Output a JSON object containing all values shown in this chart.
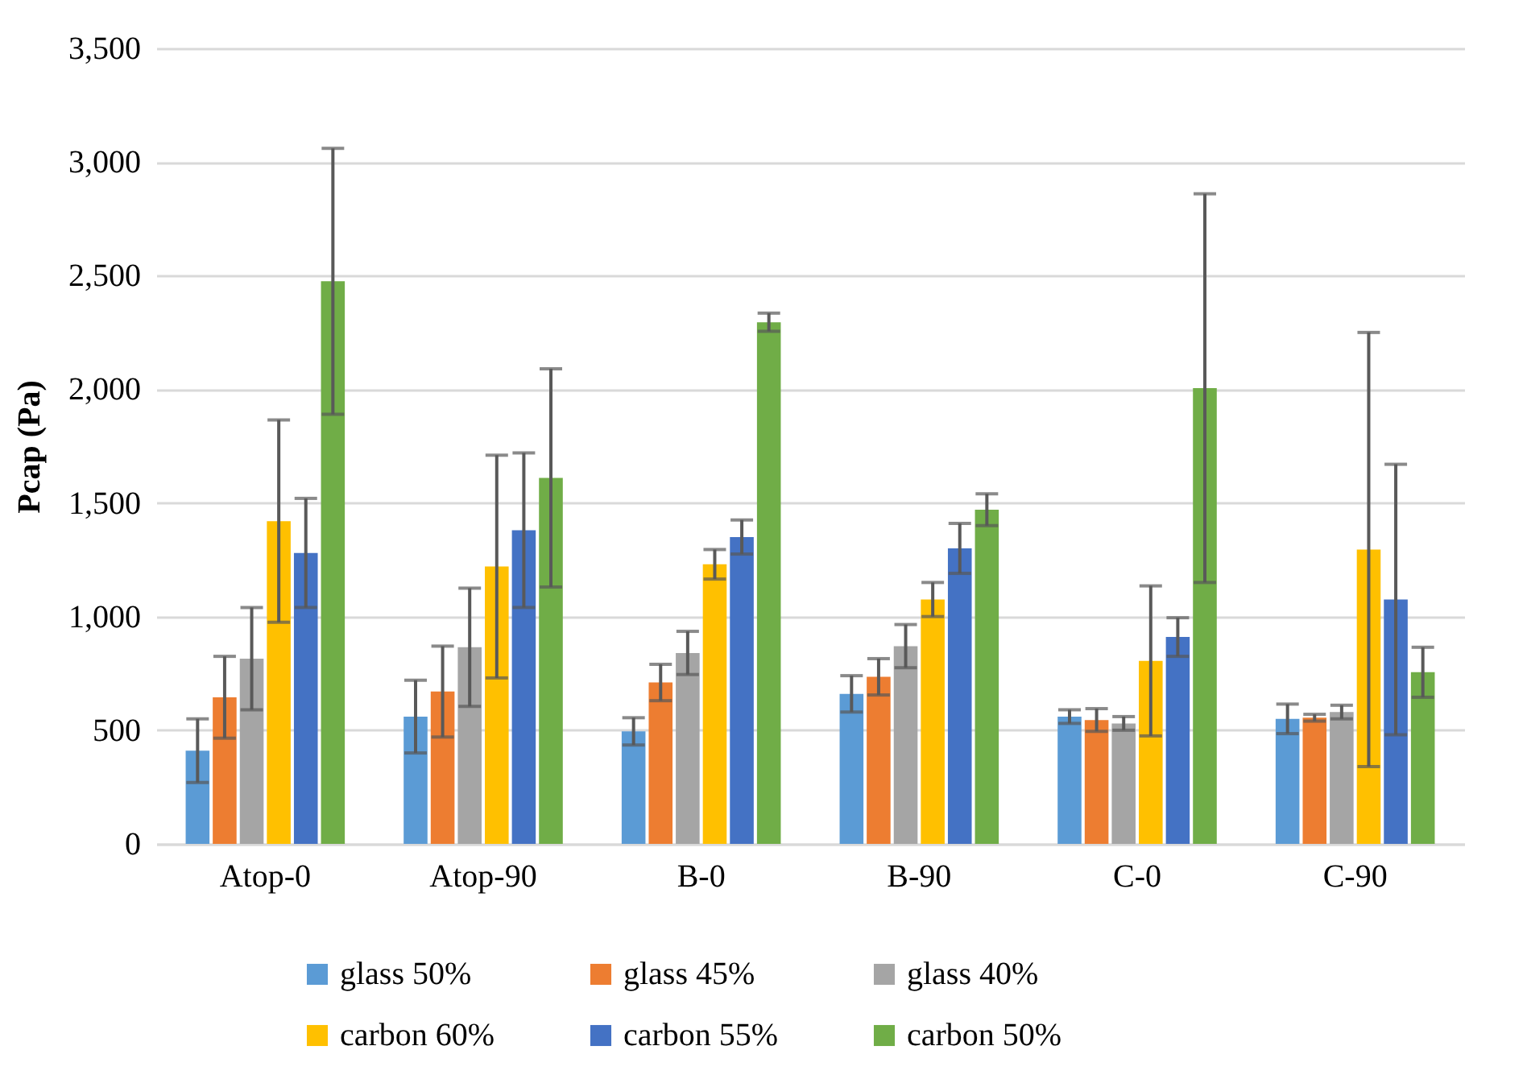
{
  "chart_data": {
    "type": "bar",
    "ylabel": "Pcap (Pa)",
    "categories": [
      "Atop-0",
      "Atop-90",
      "B-0",
      "B-90",
      "C-0",
      "C-90"
    ],
    "series": [
      {
        "name": "glass 50%",
        "color": "#5b9bd5",
        "values": [
          410,
          560,
          495,
          660,
          560,
          550
        ],
        "errors": [
          140,
          160,
          60,
          80,
          30,
          65
        ]
      },
      {
        "name": "glass 45%",
        "color": "#ed7d31",
        "values": [
          645,
          670,
          710,
          735,
          545,
          555
        ],
        "errors": [
          180,
          200,
          80,
          80,
          50,
          15
        ]
      },
      {
        "name": "glass 40%",
        "color": "#a5a5a5",
        "values": [
          815,
          865,
          840,
          870,
          530,
          580
        ],
        "errors": [
          225,
          260,
          95,
          95,
          30,
          30
        ]
      },
      {
        "name": "carbon 60%",
        "color": "#ffc000",
        "values": [
          1420,
          1220,
          1230,
          1075,
          805,
          1295
        ],
        "errors": [
          445,
          490,
          65,
          75,
          330,
          955
        ]
      },
      {
        "name": "carbon 55%",
        "color": "#4472c4",
        "values": [
          1280,
          1380,
          1350,
          1300,
          910,
          1075
        ],
        "errors": [
          240,
          340,
          75,
          110,
          85,
          595
        ]
      },
      {
        "name": "carbon 50%",
        "color": "#70ad47",
        "values": [
          2475,
          1610,
          2295,
          1470,
          2005,
          755
        ],
        "errors": [
          585,
          480,
          40,
          70,
          855,
          110
        ]
      }
    ],
    "ylim": [
      0,
      3500
    ],
    "yticks": [
      0,
      500,
      {
        "value": 1000,
        "label": "1,000"
      },
      {
        "value": 1500,
        "label": "1,500"
      },
      {
        "value": 2000,
        "label": "2,000"
      },
      {
        "value": 2500,
        "label": "2,500"
      },
      {
        "value": 3000,
        "label": "3,000"
      },
      {
        "value": 3500,
        "label": "3,500"
      }
    ],
    "grid": "y",
    "legend": "bottom"
  }
}
